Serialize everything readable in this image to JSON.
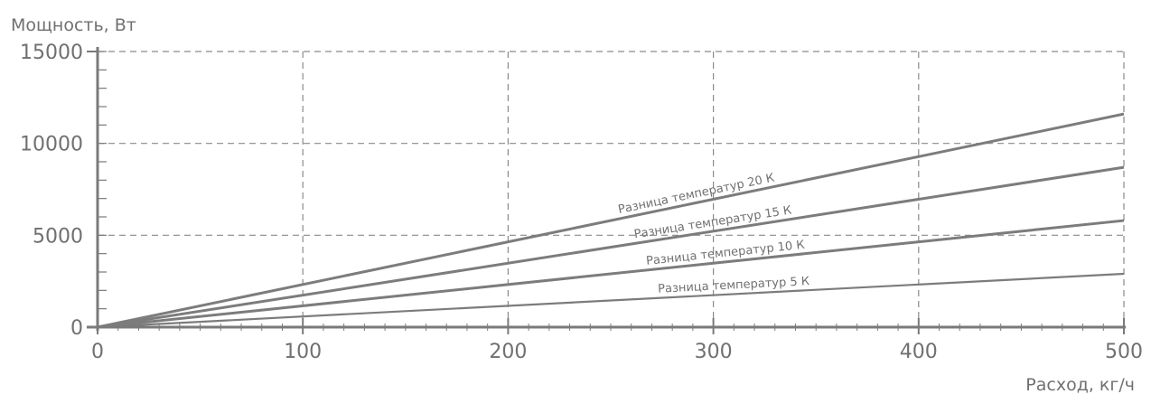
{
  "chart_data": {
    "type": "line",
    "xlabel": "Расход, кг/ч",
    "ylabel": "Мощность, Вт",
    "xlim": [
      0,
      500
    ],
    "ylim": [
      0,
      15000
    ],
    "x_ticks": [
      0,
      100,
      200,
      300,
      400,
      500
    ],
    "y_ticks": [
      0,
      5000,
      10000,
      15000
    ],
    "x_tick_labels": [
      "0",
      "100",
      "200",
      "300",
      "400",
      "500"
    ],
    "y_tick_labels": [
      "0",
      "5000",
      "10000",
      "15000"
    ],
    "grid": true,
    "series": [
      {
        "name": "Разница  температур 20 К",
        "x": [
          0,
          500
        ],
        "y": [
          0,
          11600
        ]
      },
      {
        "name": "Разница температур 15  К",
        "x": [
          0,
          500
        ],
        "y": [
          0,
          8700
        ]
      },
      {
        "name": "Разница температур 10  К",
        "x": [
          0,
          500
        ],
        "y": [
          0,
          5800
        ]
      },
      {
        "name": "Разница температур 5 К",
        "x": [
          0,
          500
        ],
        "y": [
          0,
          2900
        ]
      }
    ]
  }
}
